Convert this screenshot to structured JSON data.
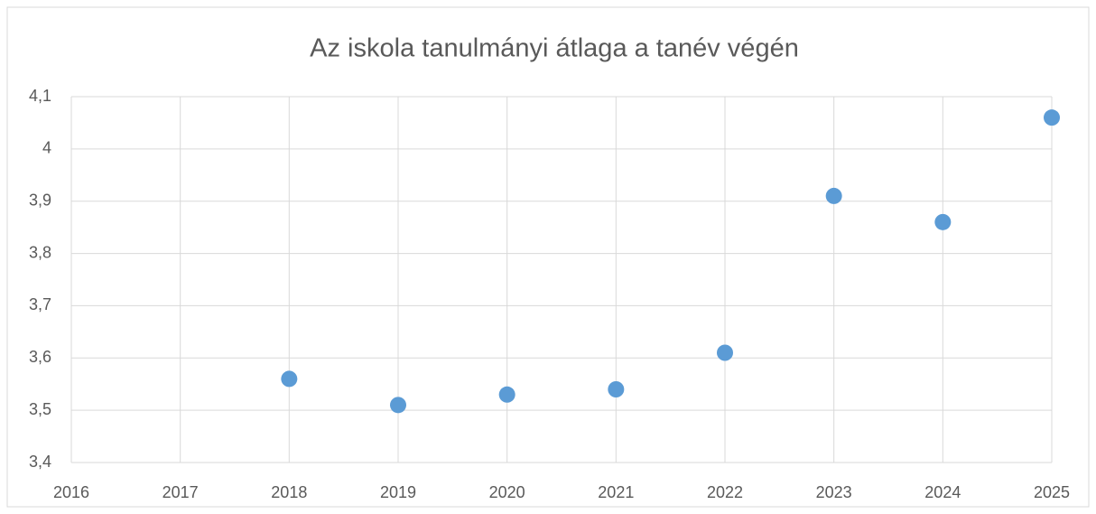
{
  "chart_data": {
    "type": "scatter",
    "title": "Az iskola tanulmányi átlaga a tanév végén",
    "x": [
      2018,
      2019,
      2020,
      2021,
      2022,
      2023,
      2024,
      2025
    ],
    "values": [
      3.56,
      3.51,
      3.53,
      3.54,
      3.61,
      3.91,
      3.86,
      4.06
    ],
    "color": "#5b9bd5",
    "xlim": [
      2016,
      2025
    ],
    "xticks": [
      2016,
      2017,
      2018,
      2019,
      2020,
      2021,
      2022,
      2023,
      2024,
      2025
    ],
    "ylim": [
      3.4,
      4.1
    ],
    "yticks": [
      {
        "value": 3.4,
        "label": "3,4"
      },
      {
        "value": 3.5,
        "label": "3,5"
      },
      {
        "value": 3.6,
        "label": "3,6"
      },
      {
        "value": 3.7,
        "label": "3,7"
      },
      {
        "value": 3.8,
        "label": "3,8"
      },
      {
        "value": 3.9,
        "label": "3,9"
      },
      4,
      {
        "value": 4.1,
        "label": "4,1"
      }
    ],
    "grid": true
  }
}
